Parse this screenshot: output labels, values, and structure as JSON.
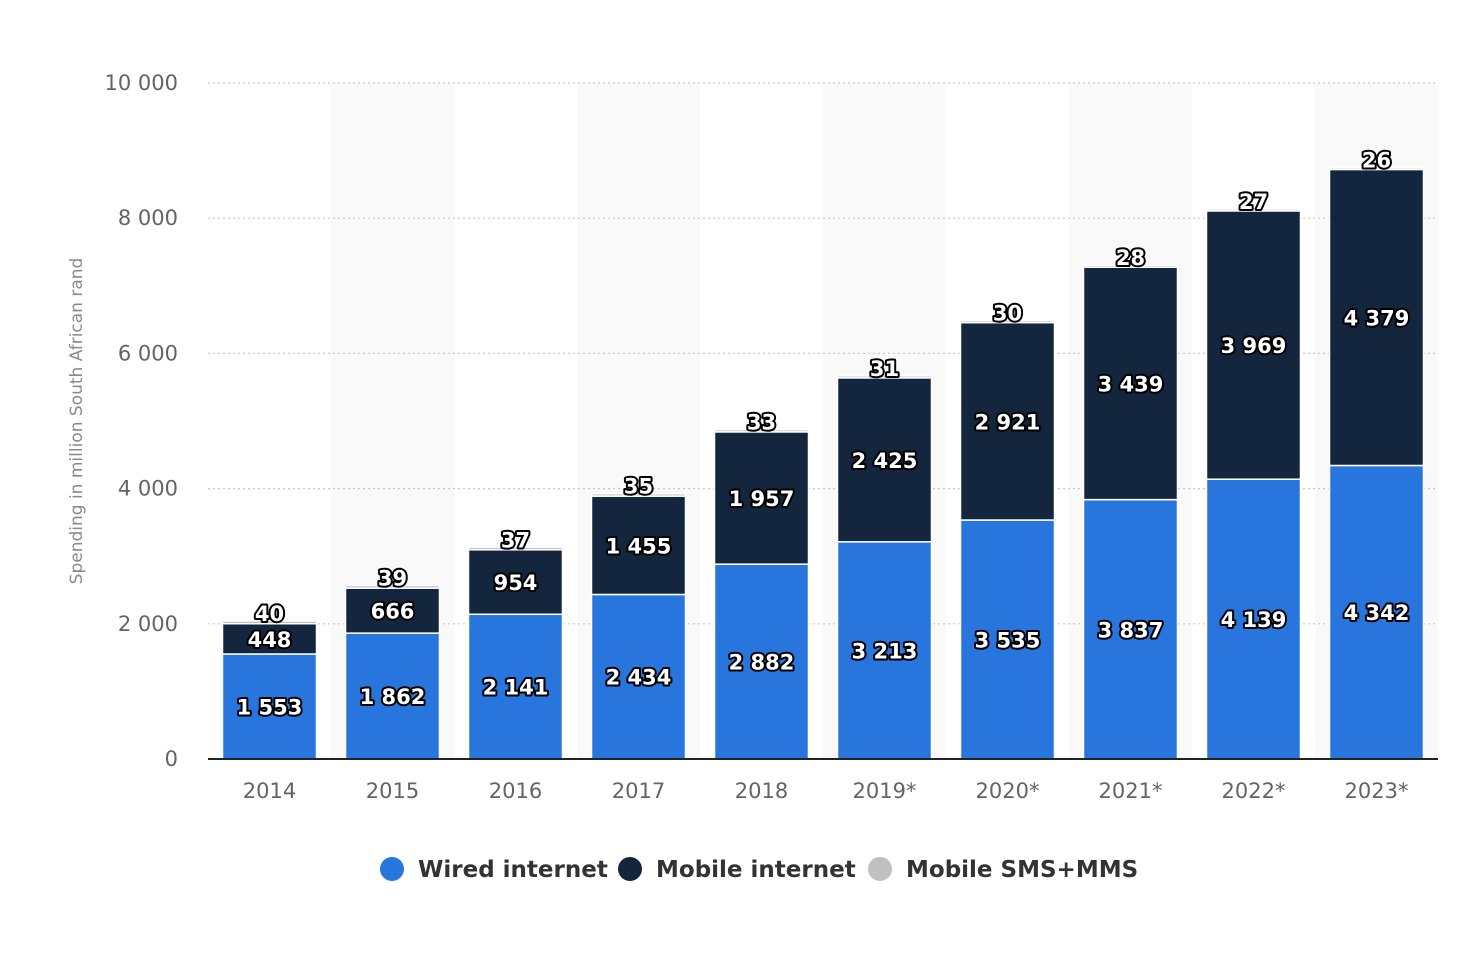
{
  "chart_data": {
    "type": "bar",
    "stacked": true,
    "categories": [
      "2014",
      "2015",
      "2016",
      "2017",
      "2018",
      "2019*",
      "2020*",
      "2021*",
      "2022*",
      "2023*"
    ],
    "series": [
      {
        "name": "Wired internet",
        "color": "#2876dd",
        "values": [
          1553,
          1862,
          2141,
          2434,
          2882,
          3213,
          3535,
          3837,
          4139,
          4342
        ],
        "labels": [
          "1 553",
          "1 862",
          "2 141",
          "2 434",
          "2 882",
          "3 213",
          "3 535",
          "3 837",
          "4 139",
          "4 342"
        ]
      },
      {
        "name": "Mobile internet",
        "color": "#14263d",
        "values": [
          448,
          666,
          954,
          1455,
          1957,
          2425,
          2921,
          3439,
          3969,
          4379
        ],
        "labels": [
          "448",
          "666",
          "954",
          "1 455",
          "1 957",
          "2 425",
          "2 921",
          "3 439",
          "3 969",
          "4 379"
        ]
      },
      {
        "name": "Mobile SMS+MMS",
        "color": "#c0c0c0",
        "values": [
          40,
          39,
          37,
          35,
          33,
          31,
          30,
          28,
          27,
          26
        ],
        "labels": [
          "40",
          "39",
          "37",
          "35",
          "33",
          "31",
          "30",
          "28",
          "27",
          "26"
        ]
      }
    ],
    "ylabel": "Spending in million South African rand",
    "xlabel": "",
    "ylim": [
      0,
      10000
    ],
    "yticks": [
      0,
      2000,
      4000,
      6000,
      8000,
      10000
    ],
    "ytick_labels": [
      "0",
      "2 000",
      "4 000",
      "6 000",
      "8 000",
      "10 000"
    ],
    "grid": true,
    "legend_position": "bottom"
  }
}
